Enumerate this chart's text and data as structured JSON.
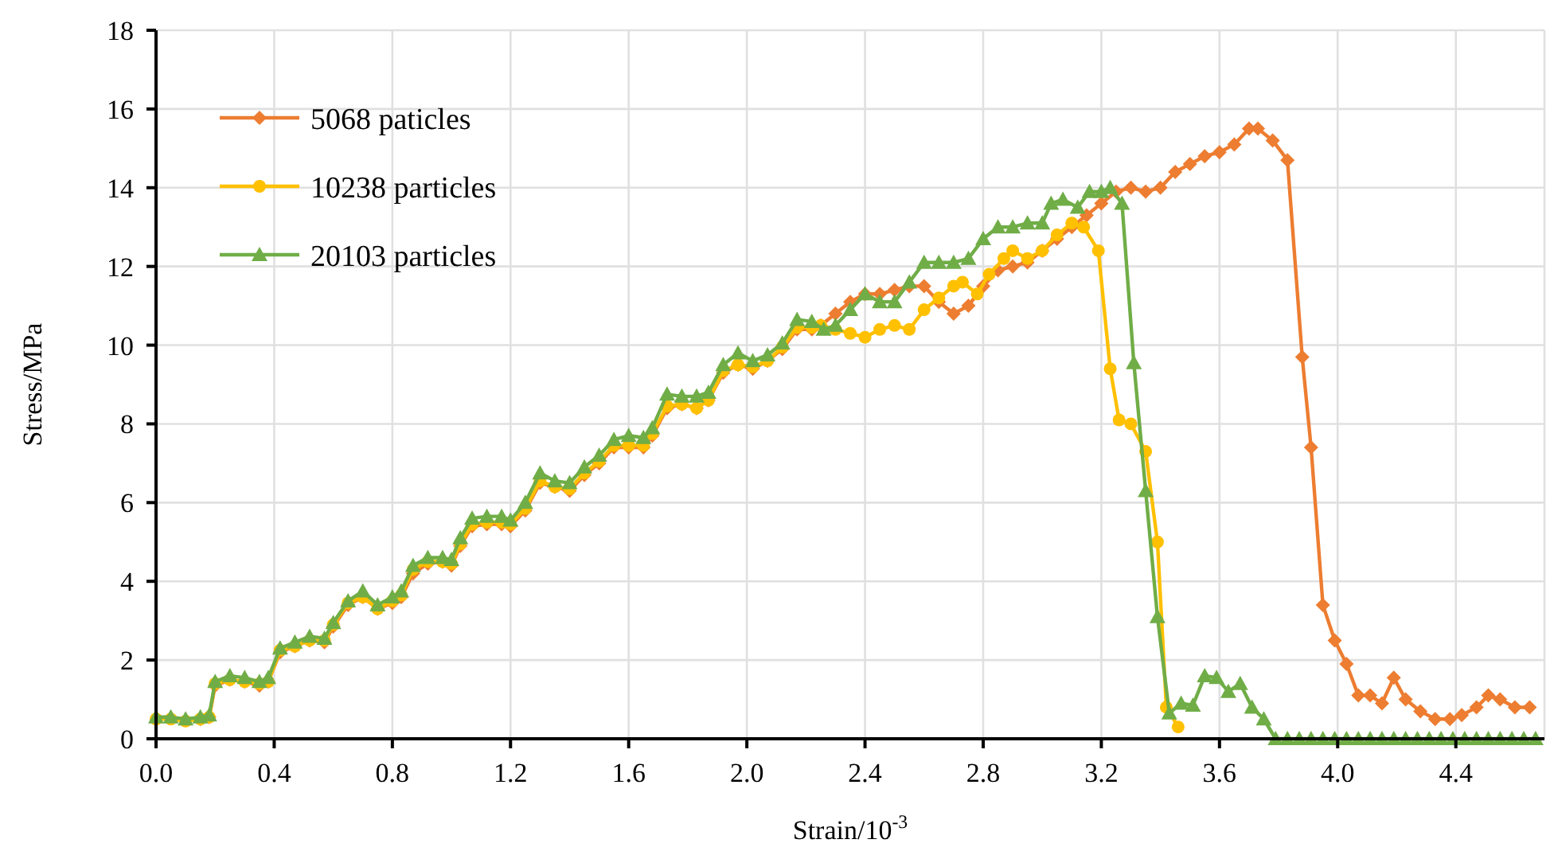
{
  "chart_data": {
    "type": "line",
    "xlabel": "Strain/10$^{-3}$",
    "ylabel": "Stress/MPa",
    "xlim": [
      0,
      4.7
    ],
    "ylim": [
      0,
      18
    ],
    "xticks": [
      {
        "value": 0,
        "label": "0.0"
      },
      0.4,
      0.8,
      1.2,
      1.6,
      {
        "value": 2,
        "label": "2.0"
      },
      2.4,
      2.8,
      3.2,
      3.6,
      {
        "value": 4,
        "label": "4.0"
      },
      4.4
    ],
    "yticks": [
      0,
      2,
      4,
      6,
      8,
      10,
      12,
      14,
      16,
      18
    ],
    "grid": true,
    "legend": "top left",
    "line_style": "solid",
    "series": [
      {
        "name": "5068 paticles",
        "color": "#ed7d31",
        "marker": "diamond",
        "x": [
          0.15,
          0.18,
          0.2,
          0.25,
          0.3,
          0.35,
          0.38,
          0.42,
          0.47,
          0.52,
          0.57,
          0.6,
          0.65,
          0.7,
          0.75,
          0.8,
          0.83,
          0.87,
          0.92,
          0.97,
          1.0,
          1.03,
          1.07,
          1.12,
          1.17,
          1.2,
          1.25,
          1.3,
          1.35,
          1.4,
          1.45,
          1.5,
          1.55,
          1.6,
          1.65,
          1.68,
          1.73,
          1.78,
          1.83,
          1.87,
          1.92,
          1.97,
          2.02,
          2.07,
          2.12,
          2.17,
          2.22,
          2.25,
          2.3,
          2.35,
          2.4,
          2.45,
          2.5,
          2.55,
          2.6,
          2.65,
          2.7,
          2.75,
          2.8,
          2.85,
          2.9,
          2.95,
          3.0,
          3.05,
          3.1,
          3.15,
          3.2,
          3.25,
          3.3,
          3.35,
          3.4,
          3.45,
          3.5,
          3.55,
          3.6,
          3.65,
          3.7,
          3.73,
          3.78,
          3.83,
          3.88,
          3.91,
          3.95,
          3.99,
          4.03,
          4.07,
          4.11,
          4.15,
          4.19,
          4.23,
          4.28,
          4.33,
          4.38,
          4.42,
          4.47,
          4.51,
          4.55,
          4.6,
          4.65
        ],
        "values": [
          0.5,
          0.55,
          1.35,
          1.5,
          1.45,
          1.35,
          1.45,
          2.2,
          2.35,
          2.5,
          2.45,
          2.85,
          3.4,
          3.6,
          3.3,
          3.45,
          3.6,
          4.2,
          4.45,
          4.5,
          4.4,
          4.9,
          5.4,
          5.45,
          5.45,
          5.4,
          5.8,
          6.5,
          6.4,
          6.3,
          6.7,
          7.0,
          7.4,
          7.4,
          7.4,
          7.7,
          8.4,
          8.5,
          8.4,
          8.6,
          9.3,
          9.5,
          9.4,
          9.6,
          9.9,
          10.4,
          10.4,
          10.5,
          10.8,
          11.1,
          11.3,
          11.3,
          11.4,
          11.5,
          11.5,
          11.1,
          10.8,
          11.0,
          11.5,
          11.9,
          12.0,
          12.1,
          12.4,
          12.7,
          13.0,
          13.3,
          13.6,
          13.9,
          14.0,
          13.9,
          14.0,
          14.4,
          14.6,
          14.8,
          14.9,
          15.1,
          15.5,
          15.5,
          15.2,
          14.7,
          9.7,
          7.4,
          3.4,
          2.5,
          1.9,
          1.1,
          1.1,
          0.9,
          1.55,
          1.0,
          0.7,
          0.5,
          0.5,
          0.6,
          0.8,
          1.1,
          1.0,
          0.8,
          0.8
        ]
      },
      {
        "name": "10238 particles",
        "color": "#ffc000",
        "marker": "circle",
        "x": [
          0,
          0.05,
          0.1,
          0.15,
          0.18,
          0.2,
          0.25,
          0.3,
          0.35,
          0.38,
          0.42,
          0.47,
          0.52,
          0.57,
          0.6,
          0.65,
          0.7,
          0.75,
          0.8,
          0.83,
          0.87,
          0.92,
          0.97,
          1.0,
          1.03,
          1.07,
          1.12,
          1.17,
          1.2,
          1.25,
          1.3,
          1.35,
          1.4,
          1.45,
          1.5,
          1.55,
          1.6,
          1.65,
          1.68,
          1.73,
          1.78,
          1.83,
          1.87,
          1.92,
          1.97,
          2.02,
          2.07,
          2.12,
          2.17,
          2.22,
          2.25,
          2.3,
          2.35,
          2.4,
          2.45,
          2.5,
          2.55,
          2.6,
          2.65,
          2.7,
          2.73,
          2.78,
          2.82,
          2.87,
          2.9,
          2.95,
          3.0,
          3.05,
          3.1,
          3.14,
          3.19,
          3.23,
          3.26,
          3.3,
          3.35,
          3.39,
          3.42,
          3.46
        ],
        "values": [
          0.5,
          0.5,
          0.45,
          0.5,
          0.55,
          1.4,
          1.5,
          1.45,
          1.4,
          1.45,
          2.25,
          2.35,
          2.5,
          2.5,
          2.9,
          3.45,
          3.6,
          3.3,
          3.5,
          3.65,
          4.3,
          4.5,
          4.5,
          4.45,
          4.95,
          5.45,
          5.5,
          5.5,
          5.45,
          5.85,
          6.55,
          6.4,
          6.35,
          6.75,
          7.05,
          7.45,
          7.45,
          7.45,
          7.75,
          8.45,
          8.5,
          8.4,
          8.6,
          9.35,
          9.5,
          9.45,
          9.6,
          9.95,
          10.45,
          10.45,
          10.5,
          10.4,
          10.3,
          10.2,
          10.4,
          10.5,
          10.4,
          10.9,
          11.2,
          11.5,
          11.6,
          11.3,
          11.8,
          12.2,
          12.4,
          12.2,
          12.4,
          12.8,
          13.1,
          13.0,
          12.4,
          9.4,
          8.1,
          8.0,
          7.3,
          5.0,
          0.8,
          0.3
        ]
      },
      {
        "name": "20103 particles",
        "color": "#70ad47",
        "marker": "triangle",
        "x": [
          0,
          0.05,
          0.1,
          0.15,
          0.18,
          0.2,
          0.25,
          0.3,
          0.35,
          0.38,
          0.42,
          0.47,
          0.52,
          0.57,
          0.6,
          0.65,
          0.7,
          0.75,
          0.8,
          0.83,
          0.87,
          0.92,
          0.97,
          1.0,
          1.03,
          1.07,
          1.12,
          1.17,
          1.2,
          1.25,
          1.3,
          1.35,
          1.4,
          1.45,
          1.5,
          1.55,
          1.6,
          1.65,
          1.68,
          1.73,
          1.78,
          1.83,
          1.87,
          1.92,
          1.97,
          2.02,
          2.07,
          2.12,
          2.17,
          2.22,
          2.26,
          2.3,
          2.35,
          2.4,
          2.45,
          2.5,
          2.55,
          2.6,
          2.65,
          2.7,
          2.75,
          2.8,
          2.85,
          2.9,
          2.95,
          3.0,
          3.03,
          3.07,
          3.12,
          3.16,
          3.2,
          3.23,
          3.27,
          3.31,
          3.35,
          3.39,
          3.43,
          3.47,
          3.51,
          3.55,
          3.59,
          3.63,
          3.67,
          3.71,
          3.75,
          3.79,
          3.83,
          3.87,
          3.91,
          3.95,
          3.99,
          4.03,
          4.07,
          4.11,
          4.15,
          4.19,
          4.23,
          4.27,
          4.31,
          4.35,
          4.39,
          4.43,
          4.47,
          4.51,
          4.55,
          4.59,
          4.63,
          4.67
        ],
        "values": [
          0.55,
          0.55,
          0.5,
          0.55,
          0.6,
          1.45,
          1.6,
          1.55,
          1.45,
          1.55,
          2.3,
          2.45,
          2.6,
          2.55,
          2.95,
          3.5,
          3.75,
          3.4,
          3.6,
          3.75,
          4.4,
          4.6,
          4.6,
          4.55,
          5.1,
          5.6,
          5.65,
          5.65,
          5.55,
          6.0,
          6.75,
          6.55,
          6.5,
          6.9,
          7.2,
          7.6,
          7.7,
          7.65,
          7.9,
          8.75,
          8.7,
          8.7,
          8.8,
          9.5,
          9.8,
          9.6,
          9.75,
          10.05,
          10.65,
          10.6,
          10.4,
          10.5,
          10.9,
          11.3,
          11.1,
          11.1,
          11.6,
          12.1,
          12.1,
          12.1,
          12.2,
          12.7,
          13.0,
          13.0,
          13.1,
          13.1,
          13.6,
          13.7,
          13.5,
          13.9,
          13.9,
          14.0,
          13.6,
          9.55,
          6.3,
          3.1,
          0.65,
          0.9,
          0.85,
          1.6,
          1.55,
          1.2,
          1.4,
          0.8,
          0.5,
          0,
          0,
          0,
          0,
          0,
          0,
          0,
          0,
          0,
          0,
          0,
          0,
          0,
          0,
          0,
          0,
          0,
          0,
          0,
          0,
          0,
          0,
          0
        ]
      }
    ]
  }
}
